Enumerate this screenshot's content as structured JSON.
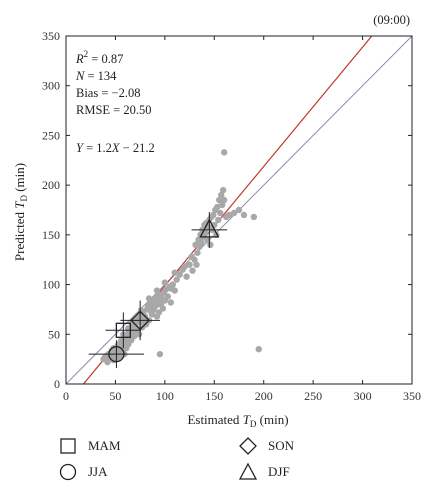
{
  "header": {
    "time_tag": "(09:00)"
  },
  "stats": {
    "r2_label": "R",
    "r2_sup": "2",
    "r2_value": " = 0.87",
    "n_label": "N",
    "n_value": " = 134",
    "bias": "Bias = −2.08",
    "rmse": "RMSE = 20.50",
    "equation_y": "Y",
    "equation_mid": " = 1.2",
    "equation_x": "X",
    "equation_end": " − 21.2"
  },
  "colors": {
    "scatter": "#a8a8a8",
    "fit_line": "#c0392b",
    "one_to_one": "#8a8aa8",
    "frame": "#222222",
    "markers": "#222222"
  },
  "legend": {
    "items": [
      {
        "label": "MAM",
        "symbol": "square"
      },
      {
        "label": "SON",
        "symbol": "diamond"
      },
      {
        "label": "JJA",
        "symbol": "circle"
      },
      {
        "label": "DJF",
        "symbol": "triangle"
      }
    ]
  },
  "chart_data": {
    "type": "scatter",
    "title": "",
    "xlabel_prefix": "Estimated ",
    "xlabel_var": "T",
    "xlabel_sub": "D",
    "xlabel_suffix": " (min)",
    "ylabel_prefix": "Predicted ",
    "ylabel_var": "T",
    "ylabel_sub": "D",
    "ylabel_suffix": " (min)",
    "xlim": [
      0,
      350
    ],
    "ylim": [
      0,
      350
    ],
    "xticks": [
      0,
      50,
      100,
      150,
      200,
      250,
      300,
      350
    ],
    "yticks": [
      0,
      50,
      100,
      150,
      200,
      250,
      300,
      350
    ],
    "fit_line": {
      "slope": 1.2,
      "intercept": -21.2
    },
    "one_to_one": true,
    "scatter_points": [
      [
        38,
        25
      ],
      [
        40,
        28
      ],
      [
        42,
        22
      ],
      [
        43,
        30
      ],
      [
        45,
        26
      ],
      [
        46,
        33
      ],
      [
        47,
        27
      ],
      [
        48,
        24
      ],
      [
        49,
        31
      ],
      [
        50,
        29
      ],
      [
        51,
        35
      ],
      [
        52,
        26
      ],
      [
        53,
        40
      ],
      [
        54,
        32
      ],
      [
        55,
        28
      ],
      [
        56,
        38
      ],
      [
        57,
        34
      ],
      [
        58,
        45
      ],
      [
        59,
        30
      ],
      [
        60,
        42
      ],
      [
        61,
        36
      ],
      [
        62,
        50
      ],
      [
        63,
        40
      ],
      [
        64,
        47
      ],
      [
        65,
        55
      ],
      [
        66,
        44
      ],
      [
        67,
        60
      ],
      [
        68,
        52
      ],
      [
        69,
        48
      ],
      [
        70,
        58
      ],
      [
        71,
        63
      ],
      [
        72,
        55
      ],
      [
        73,
        66
      ],
      [
        74,
        50
      ],
      [
        75,
        70
      ],
      [
        76,
        62
      ],
      [
        77,
        57
      ],
      [
        78,
        72
      ],
      [
        79,
        65
      ],
      [
        80,
        68
      ],
      [
        81,
        60
      ],
      [
        82,
        75
      ],
      [
        83,
        78
      ],
      [
        84,
        64
      ],
      [
        85,
        80
      ],
      [
        86,
        73
      ],
      [
        87,
        70
      ],
      [
        88,
        82
      ],
      [
        89,
        76
      ],
      [
        90,
        85
      ],
      [
        91,
        79
      ],
      [
        92,
        68
      ],
      [
        93,
        88
      ],
      [
        94,
        72
      ],
      [
        95,
        83
      ],
      [
        96,
        90
      ],
      [
        97,
        86
      ],
      [
        98,
        76
      ],
      [
        99,
        92
      ],
      [
        100,
        84
      ],
      [
        101,
        95
      ],
      [
        103,
        88
      ],
      [
        105,
        98
      ],
      [
        106,
        82
      ],
      [
        108,
        100
      ],
      [
        110,
        94
      ],
      [
        112,
        105
      ],
      [
        115,
        110
      ],
      [
        118,
        115
      ],
      [
        120,
        118
      ],
      [
        122,
        108
      ],
      [
        125,
        120
      ],
      [
        127,
        128
      ],
      [
        128,
        114
      ],
      [
        130,
        125
      ],
      [
        131,
        140
      ],
      [
        132,
        120
      ],
      [
        133,
        132
      ],
      [
        134,
        145
      ],
      [
        135,
        138
      ],
      [
        136,
        150
      ],
      [
        137,
        142
      ],
      [
        138,
        155
      ],
      [
        139,
        148
      ],
      [
        140,
        160
      ],
      [
        141,
        152
      ],
      [
        142,
        162
      ],
      [
        143,
        145
      ],
      [
        144,
        158
      ],
      [
        145,
        165
      ],
      [
        146,
        140
      ],
      [
        147,
        168
      ],
      [
        148,
        155
      ],
      [
        149,
        170
      ],
      [
        150,
        160
      ],
      [
        151,
        175
      ],
      [
        152,
        150
      ],
      [
        153,
        178
      ],
      [
        154,
        165
      ],
      [
        155,
        185
      ],
      [
        156,
        172
      ],
      [
        157,
        190
      ],
      [
        158,
        180
      ],
      [
        159,
        195
      ],
      [
        160,
        185
      ],
      [
        160,
        233
      ],
      [
        162,
        168
      ],
      [
        165,
        170
      ],
      [
        170,
        172
      ],
      [
        175,
        175
      ],
      [
        180,
        170
      ],
      [
        190,
        168
      ],
      [
        195,
        35
      ],
      [
        95,
        30
      ],
      [
        58,
        50
      ],
      [
        62,
        45
      ],
      [
        66,
        62
      ],
      [
        70,
        54
      ],
      [
        74,
        66
      ],
      [
        78,
        60
      ],
      [
        52,
        38
      ],
      [
        48,
        36
      ],
      [
        56,
        44
      ],
      [
        63,
        56
      ],
      [
        68,
        64
      ],
      [
        72,
        62
      ],
      [
        76,
        74
      ],
      [
        84,
        86
      ],
      [
        88,
        74
      ],
      [
        92,
        94
      ],
      [
        96,
        80
      ],
      [
        100,
        102
      ],
      [
        106,
        96
      ],
      [
        110,
        112
      ]
    ],
    "seasons": [
      {
        "name": "MAM",
        "symbol": "square",
        "x": 58,
        "y": 54,
        "x_err": 18,
        "y_err": 18
      },
      {
        "name": "SON",
        "symbol": "diamond",
        "x": 75,
        "y": 64,
        "x_err": 20,
        "y_err": 20
      },
      {
        "name": "JJA",
        "symbol": "circle",
        "x": 51,
        "y": 30,
        "x_err": 28,
        "y_err": 14
      },
      {
        "name": "DJF",
        "symbol": "triangle",
        "x": 145,
        "y": 155,
        "x_err": 18,
        "y_err": 18
      }
    ]
  }
}
